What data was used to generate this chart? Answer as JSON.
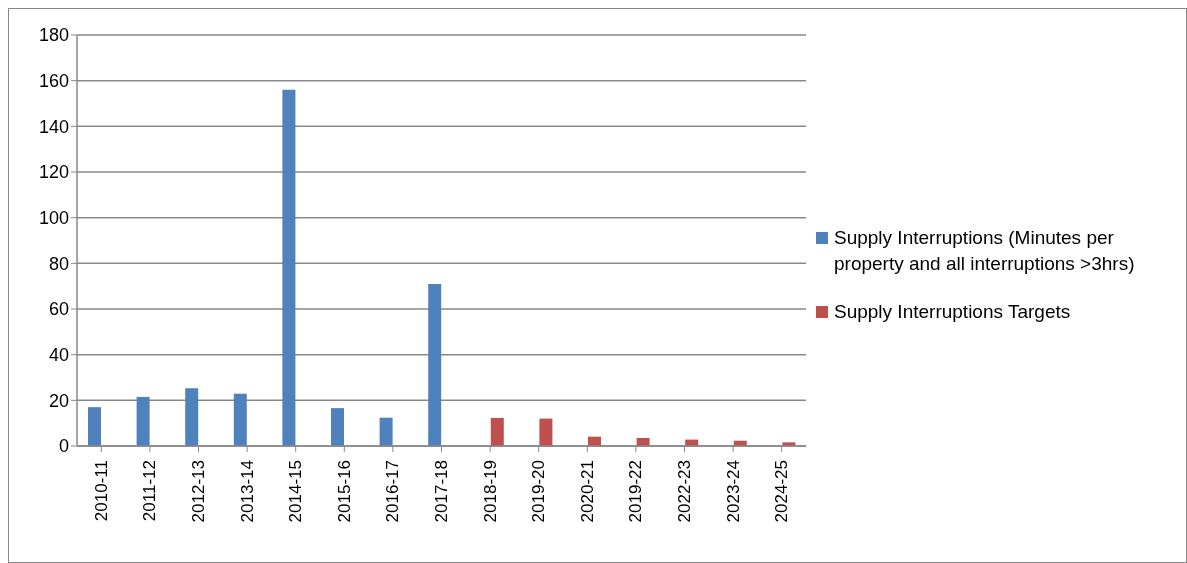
{
  "chart_data": {
    "type": "bar",
    "categories": [
      "2010-11",
      "2011-12",
      "2012-13",
      "2013-14",
      "2014-15",
      "2015-16",
      "2016-17",
      "2017-18",
      "2018-19",
      "2019-20",
      "2020-21",
      "2019-22",
      "2022-23",
      "2023-24",
      "2024-25"
    ],
    "series": [
      {
        "name": "Supply Interruptions (Minutes per property and all interruptions >3hrs)",
        "color": "#4f81bd",
        "values": [
          17,
          21.5,
          25.3,
          22.9,
          156,
          16.6,
          12.4,
          71,
          null,
          null,
          null,
          null,
          null,
          null,
          null
        ]
      },
      {
        "name": "Supply Interruptions Targets",
        "color": "#c0504d",
        "values": [
          null,
          null,
          null,
          null,
          null,
          null,
          null,
          null,
          12.3,
          12,
          4.1,
          3.5,
          2.8,
          2.3,
          1.6
        ]
      }
    ],
    "ylim": [
      0,
      180
    ],
    "yticks": [
      0,
      20,
      40,
      60,
      80,
      100,
      120,
      140,
      160,
      180
    ],
    "grid": "y",
    "legend": "right"
  }
}
